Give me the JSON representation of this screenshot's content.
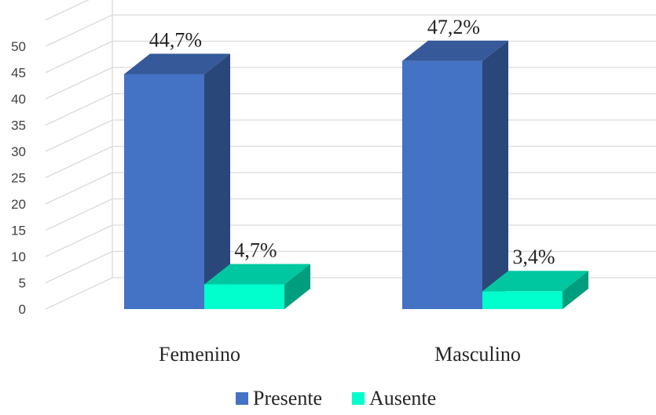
{
  "chart_data": {
    "type": "bar",
    "title": "",
    "xlabel": "",
    "ylabel": "",
    "ylim": [
      0,
      50
    ],
    "yticks": [
      0,
      5,
      10,
      15,
      20,
      25,
      30,
      35,
      40,
      45,
      50
    ],
    "grid": true,
    "legend_position": "bottom",
    "categories": [
      "Femenino",
      "Masculino"
    ],
    "series": [
      {
        "name": "Presente",
        "values": [
          44.7,
          47.2
        ],
        "labels": [
          "44,7%",
          "47,2%"
        ],
        "color": "#4472c4"
      },
      {
        "name": "Ausente",
        "values": [
          4.7,
          3.4
        ],
        "labels": [
          "4,7%",
          "3,4%"
        ],
        "color": "#00ffcc"
      }
    ]
  }
}
